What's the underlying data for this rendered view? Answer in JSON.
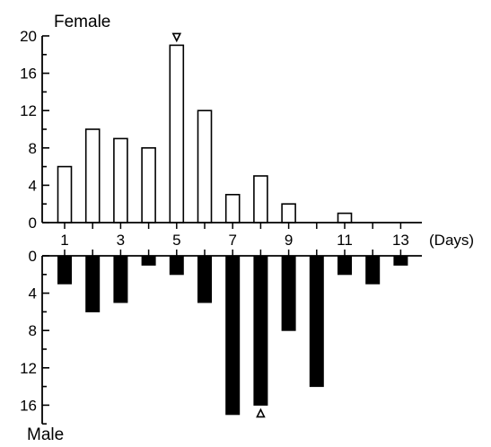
{
  "chart_data": [
    {
      "type": "bar",
      "title": "Female",
      "xlabel": "(Days)",
      "ylabel": "",
      "x": [
        1,
        2,
        3,
        4,
        5,
        6,
        7,
        8,
        9,
        10,
        11,
        12,
        13
      ],
      "values": [
        6,
        10,
        9,
        8,
        19,
        12,
        3,
        5,
        2,
        0,
        1,
        0,
        0
      ],
      "ylim": [
        0,
        20
      ],
      "yticks": [
        0,
        4,
        8,
        12,
        16,
        20
      ],
      "bar_fill": "#ffffff",
      "bar_stroke": "#000000",
      "marker": {
        "day": 5,
        "symbol": "▽"
      }
    },
    {
      "type": "bar",
      "title": "Male",
      "xlabel": "(Days)",
      "ylabel": "",
      "x": [
        1,
        2,
        3,
        4,
        5,
        6,
        7,
        8,
        9,
        10,
        11,
        12,
        13
      ],
      "values": [
        3,
        6,
        5,
        1,
        2,
        5,
        17,
        16,
        8,
        14,
        2,
        3,
        1
      ],
      "ylim": [
        0,
        18
      ],
      "yticks": [
        0,
        4,
        8,
        12,
        16
      ],
      "bar_fill": "#000000",
      "bar_stroke": "#000000",
      "inverted": true,
      "marker": {
        "day": 8,
        "symbol": "△"
      }
    }
  ],
  "x_axis": {
    "ticks": [
      1,
      2,
      3,
      4,
      5,
      6,
      7,
      8,
      9,
      10,
      11,
      12,
      13
    ],
    "tick_labels": [
      "1",
      "3",
      "5",
      "7",
      "9",
      "11",
      "13"
    ],
    "unit_label": "(Days)"
  }
}
